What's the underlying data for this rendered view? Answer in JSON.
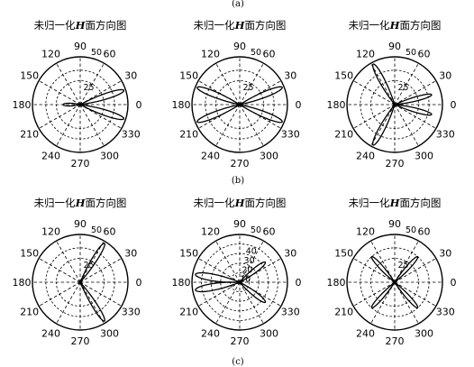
{
  "figure": {
    "captions": [
      "(a)",
      "(b)",
      "(c)"
    ]
  },
  "chart_data": [
    {
      "type": "polar",
      "row": 0,
      "col": 0,
      "title_pre": "未归一化",
      "title_h": "H",
      "title_post": "面方向图",
      "angle_labels": [
        "0",
        "30",
        "60",
        "90",
        "120",
        "150",
        "180",
        "210",
        "240",
        "270",
        "300",
        "330"
      ],
      "ring_labels": [
        "25",
        "50"
      ],
      "rmax": 50,
      "lobes": [
        {
          "angle": 18,
          "r": 48,
          "hw": 10
        },
        {
          "angle": -18,
          "r": 48,
          "hw": 10
        },
        {
          "angle": 180,
          "r": 18,
          "hw": 13
        }
      ]
    },
    {
      "type": "polar",
      "row": 0,
      "col": 1,
      "title_pre": "未归一化",
      "title_h": "H",
      "title_post": "面方向图",
      "angle_labels": [
        "0",
        "30",
        "60",
        "90",
        "120",
        "150",
        "180",
        "210",
        "240",
        "270",
        "300",
        "330"
      ],
      "ring_labels": [
        "25",
        "50"
      ],
      "rmax": 50,
      "lobes": [
        {
          "angle": 22,
          "r": 48,
          "hw": 10
        },
        {
          "angle": -22,
          "r": 48,
          "hw": 10
        },
        {
          "angle": 158,
          "r": 48,
          "hw": 10
        },
        {
          "angle": 202,
          "r": 48,
          "hw": 10
        }
      ]
    },
    {
      "type": "polar",
      "row": 0,
      "col": 2,
      "title_pre": "未归一化",
      "title_h": "H",
      "title_post": "面方向图",
      "angle_labels": [
        "0",
        "30",
        "60",
        "90",
        "120",
        "150",
        "180",
        "210",
        "240",
        "270",
        "300",
        "330"
      ],
      "ring_labels": [
        "25",
        "50"
      ],
      "rmax": 50,
      "lobes": [
        {
          "angle": 15,
          "r": 40,
          "hw": 9
        },
        {
          "angle": -15,
          "r": 40,
          "hw": 9
        },
        {
          "angle": 118,
          "r": 48,
          "hw": 10
        },
        {
          "angle": 242,
          "r": 48,
          "hw": 10
        }
      ]
    },
    {
      "type": "polar",
      "row": 1,
      "col": 0,
      "title_pre": "未归一化",
      "title_h": "H",
      "title_post": "面方向图",
      "angle_labels": [
        "0",
        "30",
        "60",
        "90",
        "120",
        "150",
        "180",
        "210",
        "240",
        "270",
        "300",
        "330"
      ],
      "ring_labels": [
        "25",
        "50"
      ],
      "rmax": 50,
      "lobes": [
        {
          "angle": 58,
          "r": 48,
          "hw": 9
        },
        {
          "angle": -58,
          "r": 48,
          "hw": 9
        }
      ]
    },
    {
      "type": "polar",
      "row": 1,
      "col": 1,
      "title_pre": "未归一化",
      "title_h": "H",
      "title_post": "面方向图",
      "angle_labels": [
        "0",
        "30",
        "60",
        "90",
        "120",
        "150",
        "180",
        "210",
        "240",
        "270",
        "300",
        "330"
      ],
      "ring_labels": [
        "10",
        "20",
        "30",
        "40",
        "50"
      ],
      "rmax": 50,
      "lobes": [
        {
          "angle": 38,
          "r": 34,
          "hw": 11
        },
        {
          "angle": -38,
          "r": 34,
          "hw": 11
        },
        {
          "angle": 170,
          "r": 47,
          "hw": 12
        },
        {
          "angle": 190,
          "r": 47,
          "hw": 12
        }
      ]
    },
    {
      "type": "polar",
      "row": 1,
      "col": 2,
      "title_pre": "未归一化",
      "title_h": "H",
      "title_post": "面方向图",
      "angle_labels": [
        "0",
        "30",
        "60",
        "90",
        "120",
        "150",
        "180",
        "210",
        "240",
        "270",
        "300",
        "330"
      ],
      "ring_labels": [
        "25",
        "50"
      ],
      "rmax": 50,
      "lobes": [
        {
          "angle": 48,
          "r": 36,
          "hw": 9
        },
        {
          "angle": -48,
          "r": 36,
          "hw": 9
        },
        {
          "angle": 132,
          "r": 36,
          "hw": 9
        },
        {
          "angle": 228,
          "r": 36,
          "hw": 9
        }
      ]
    }
  ]
}
